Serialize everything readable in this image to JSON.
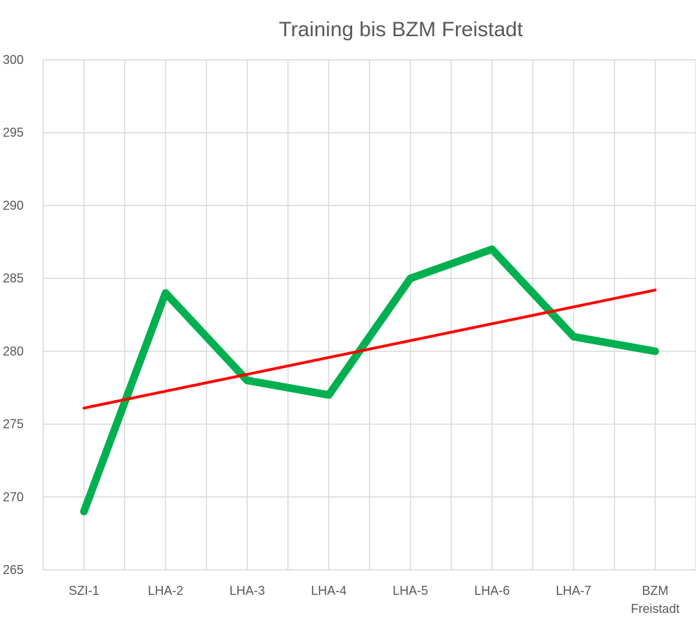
{
  "chart_data": {
    "type": "line",
    "title": "Training bis BZM Freistadt",
    "categories": [
      "SZI-1",
      "LHA-2",
      "LHA-3",
      "LHA-4",
      "LHA-5",
      "LHA-6",
      "LHA-7",
      "BZM Freistadt"
    ],
    "series": [
      {
        "values": [
          269,
          284,
          278,
          277,
          285,
          287,
          281,
          280
        ],
        "color": "#00B050",
        "role": "data"
      }
    ],
    "trendline": {
      "type": "linear",
      "start": 276.1,
      "end": 284.2,
      "color": "#FF0000"
    },
    "ylim": [
      265,
      300
    ],
    "y_ticks": [
      265,
      270,
      275,
      280,
      285,
      290,
      295,
      300
    ],
    "grid": true,
    "legend": "none",
    "xlabel": "",
    "ylabel": ""
  }
}
